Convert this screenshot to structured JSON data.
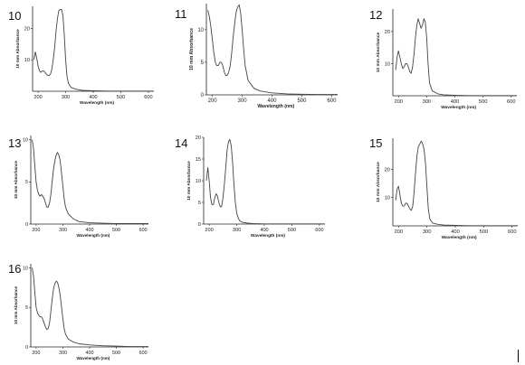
{
  "chart_data": [
    {
      "id": "10",
      "type": "line",
      "xlabel": "Wavelength (nm)",
      "ylabel": "10 mm Absorbance",
      "xlim": [
        180,
        620
      ],
      "ylim": [
        0,
        27
      ],
      "xticks": [
        200,
        300,
        400,
        500,
        600
      ],
      "yticks": [
        10,
        20
      ],
      "x": [
        185,
        190,
        195,
        200,
        205,
        210,
        215,
        220,
        225,
        230,
        235,
        240,
        245,
        250,
        255,
        260,
        265,
        270,
        275,
        280,
        285,
        290,
        295,
        300,
        305,
        310,
        320,
        340,
        360,
        400,
        450,
        500,
        550,
        600,
        620
      ],
      "y": [
        10,
        12.5,
        10.5,
        8,
        6.5,
        6,
        6.5,
        6.5,
        6,
        5.5,
        5,
        5,
        5.5,
        7,
        10,
        14,
        19,
        23,
        25.5,
        26,
        26,
        24,
        18,
        10,
        4.5,
        2.5,
        1.2,
        0.6,
        0.3,
        0.15,
        0.05,
        0.05,
        0.05,
        0.05,
        0.05
      ]
    },
    {
      "id": "11",
      "type": "line",
      "xlabel": "Wavelength (nm)",
      "ylabel": "10 mm Absorbance",
      "xlim": [
        180,
        620
      ],
      "ylim": [
        0,
        14
      ],
      "xticks": [
        200,
        300,
        400,
        500,
        600
      ],
      "yticks": [
        0,
        5,
        10
      ],
      "x": [
        185,
        190,
        195,
        200,
        205,
        210,
        215,
        220,
        225,
        230,
        235,
        240,
        245,
        250,
        255,
        260,
        265,
        270,
        275,
        280,
        285,
        290,
        295,
        300,
        305,
        310,
        320,
        340,
        360,
        400,
        450,
        500,
        550,
        600,
        620
      ],
      "y": [
        13,
        12,
        10.5,
        8.5,
        6.5,
        5,
        4.5,
        4.5,
        5,
        5,
        4.5,
        3.5,
        3,
        3,
        3.5,
        4.5,
        6.5,
        9,
        11,
        12.8,
        13.5,
        13.8,
        12.5,
        10,
        7,
        4.5,
        2.2,
        1,
        0.6,
        0.3,
        0.15,
        0.1,
        0.05,
        0.05,
        0.05
      ]
    },
    {
      "id": "12",
      "type": "line",
      "xlabel": "Wavelength (nm)",
      "ylabel": "10 mm Absorbance",
      "xlim": [
        180,
        620
      ],
      "ylim": [
        0,
        27
      ],
      "xticks": [
        200,
        300,
        400,
        500,
        600
      ],
      "yticks": [
        10,
        20
      ],
      "x": [
        190,
        195,
        200,
        205,
        210,
        215,
        220,
        225,
        230,
        235,
        240,
        245,
        250,
        255,
        260,
        265,
        270,
        275,
        280,
        285,
        290,
        295,
        300,
        305,
        310,
        320,
        340,
        360,
        400,
        450,
        500,
        550,
        600,
        620
      ],
      "y": [
        8,
        12,
        14,
        12,
        10,
        8.5,
        9,
        10,
        10,
        9,
        7.5,
        7,
        9,
        13,
        18,
        22,
        24,
        22.5,
        21,
        22,
        24,
        23,
        18,
        10,
        4,
        1.5,
        0.6,
        0.3,
        0.15,
        0.05,
        0.05,
        0.05,
        0.05,
        0.05
      ]
    },
    {
      "id": "13",
      "type": "line",
      "xlabel": "Wavelength (nm)",
      "ylabel": "10 mm Absorbance",
      "xlim": [
        180,
        620
      ],
      "ylim": [
        0,
        10.5
      ],
      "xticks": [
        200,
        300,
        400,
        500,
        600
      ],
      "yticks": [
        0,
        5,
        10
      ],
      "x": [
        185,
        190,
        195,
        200,
        205,
        210,
        215,
        220,
        225,
        230,
        235,
        240,
        245,
        250,
        255,
        260,
        265,
        270,
        275,
        280,
        285,
        290,
        295,
        300,
        305,
        310,
        320,
        340,
        360,
        400,
        450,
        500,
        550,
        600,
        620
      ],
      "y": [
        10,
        9,
        7,
        5,
        4,
        3.5,
        3.3,
        3.5,
        3.3,
        3,
        2.5,
        2,
        2,
        2.5,
        3.5,
        5,
        6.5,
        7.5,
        8.2,
        8.5,
        8.2,
        7.5,
        6,
        4.5,
        3,
        2,
        1.2,
        0.6,
        0.3,
        0.15,
        0.1,
        0.05,
        0.05,
        0.05,
        0.05
      ]
    },
    {
      "id": "14",
      "type": "line",
      "xlabel": "Wavelength (nm)",
      "ylabel": "10 mm Absorbance",
      "xlim": [
        180,
        620
      ],
      "ylim": [
        0,
        20
      ],
      "xticks": [
        200,
        300,
        400,
        500,
        600
      ],
      "yticks": [
        0,
        5,
        10,
        15,
        20
      ],
      "x": [
        190,
        195,
        200,
        205,
        210,
        215,
        220,
        225,
        230,
        235,
        240,
        245,
        250,
        255,
        260,
        265,
        270,
        275,
        280,
        285,
        290,
        295,
        300,
        305,
        310,
        320,
        340,
        360,
        400,
        450,
        500,
        550,
        600,
        620
      ],
      "y": [
        10,
        13,
        10,
        6,
        4.5,
        4.5,
        6,
        7,
        6.5,
        5,
        4,
        4,
        6,
        9,
        13,
        17,
        19,
        19.5,
        18,
        14,
        9,
        5,
        2.5,
        1.5,
        0.8,
        0.4,
        0.2,
        0.1,
        0.05,
        0.05,
        0.05,
        0.05,
        0.05,
        0.05
      ]
    },
    {
      "id": "15",
      "type": "line",
      "xlabel": "Wavelength (nm)",
      "ylabel": "10 mm Absorbance",
      "xlim": [
        180,
        620
      ],
      "ylim": [
        0,
        31
      ],
      "xticks": [
        200,
        300,
        400,
        500,
        600
      ],
      "yticks": [
        10,
        20
      ],
      "x": [
        190,
        195,
        200,
        205,
        210,
        215,
        220,
        225,
        230,
        235,
        240,
        245,
        250,
        255,
        260,
        265,
        270,
        275,
        280,
        285,
        290,
        295,
        300,
        305,
        310,
        320,
        340,
        360,
        400,
        450,
        500,
        550,
        600,
        620
      ],
      "y": [
        9,
        13,
        14,
        11,
        8,
        7,
        7,
        8,
        8,
        7,
        6,
        5.5,
        7,
        12,
        19,
        25,
        28,
        29,
        30,
        29,
        27,
        22,
        14,
        6,
        2.5,
        1,
        0.5,
        0.3,
        0.15,
        0.05,
        0.05,
        0.05,
        0.05,
        0.05
      ]
    },
    {
      "id": "16",
      "type": "line",
      "xlabel": "Wavelength (nm)",
      "ylabel": "10 mm Absorbance",
      "xlim": [
        180,
        620
      ],
      "ylim": [
        0,
        10.5
      ],
      "xticks": [
        200,
        300,
        400,
        500,
        600
      ],
      "yticks": [
        0,
        5,
        10
      ],
      "x": [
        185,
        190,
        195,
        200,
        205,
        210,
        215,
        220,
        225,
        230,
        235,
        240,
        245,
        250,
        255,
        260,
        265,
        270,
        275,
        280,
        285,
        290,
        295,
        300,
        305,
        310,
        320,
        340,
        360,
        400,
        450,
        500,
        550,
        600,
        620
      ],
      "y": [
        10,
        9,
        7,
        5,
        4.3,
        4,
        3.8,
        3.8,
        3.5,
        3,
        2.5,
        2.2,
        2.3,
        3,
        4.5,
        6,
        7.3,
        8,
        8.3,
        8.2,
        7.5,
        6.5,
        5,
        3.5,
        2.3,
        1.6,
        1,
        0.6,
        0.4,
        0.25,
        0.15,
        0.1,
        0.05,
        0.05,
        0.05
      ]
    }
  ]
}
